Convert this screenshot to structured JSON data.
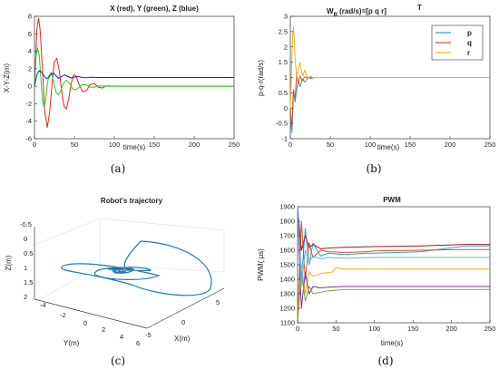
{
  "chart_data": [
    {
      "panel": "(a)",
      "type": "line",
      "title": "X (red), Y (green), Z (blue)",
      "xlabel": "time(s)",
      "ylabel": "X-Y-Z(m)",
      "xlim": [
        0,
        250
      ],
      "ylim": [
        -6,
        8
      ],
      "xticks": [
        0,
        50,
        100,
        150,
        200,
        250
      ],
      "yticks": [
        -6,
        -4,
        -2,
        0,
        2,
        4,
        6,
        8
      ],
      "series": [
        {
          "color": "#e8231c",
          "x": [
            0,
            1,
            3,
            5,
            7,
            10,
            13,
            16,
            19,
            22,
            25,
            28,
            31,
            34,
            37,
            40,
            43,
            46,
            49,
            52,
            55,
            60,
            65,
            70,
            75,
            80,
            85,
            90,
            100,
            110,
            250
          ],
          "y": [
            0,
            2.0,
            6.5,
            7.8,
            6.5,
            2.0,
            -3.0,
            -4.7,
            -3.0,
            0.3,
            2.8,
            3.2,
            1.8,
            -0.5,
            -2.3,
            -2.6,
            -1.4,
            0.3,
            1.3,
            1.2,
            0.4,
            -0.6,
            -0.5,
            0.2,
            0.3,
            -0.1,
            -0.2,
            0.05,
            0.02,
            0,
            0
          ]
        },
        {
          "color": "#1fd11f",
          "x": [
            0,
            1,
            2,
            4,
            6,
            8,
            10,
            12,
            14,
            16,
            18,
            21,
            24,
            27,
            30,
            33,
            36,
            40,
            44,
            48,
            52,
            56,
            60,
            65,
            70,
            75,
            80,
            90,
            100,
            110,
            250
          ],
          "y": [
            0,
            1.5,
            3.5,
            4.4,
            3.5,
            1.0,
            -1.6,
            -2.4,
            -1.6,
            0.2,
            1.2,
            1.6,
            0.6,
            -0.7,
            -1.0,
            -0.5,
            0.3,
            0.7,
            0.3,
            -0.3,
            -0.4,
            -0.1,
            0.2,
            0.15,
            -0.1,
            -0.1,
            0.05,
            0,
            0,
            0,
            0
          ]
        },
        {
          "color": "#1e1ee8",
          "x": [
            0,
            3,
            6,
            9,
            12,
            15,
            18,
            21,
            24,
            27,
            30,
            34,
            38,
            42,
            46,
            50,
            55,
            60,
            65,
            70,
            80,
            90,
            100,
            250
          ],
          "y": [
            0,
            1.3,
            1.8,
            1.6,
            1.2,
            0.9,
            1.0,
            1.4,
            1.5,
            1.2,
            0.9,
            1.1,
            1.3,
            1.1,
            0.95,
            1.05,
            1.1,
            1.0,
            0.98,
            1.02,
            1.0,
            1.0,
            1.0,
            1.0
          ]
        }
      ]
    },
    {
      "panel": "(b)",
      "type": "line",
      "title": "W",
      "title_sub": "B",
      "title_rest": " (rad/s)=[p q r]",
      "title_sup": "T",
      "xlabel": "time(s)",
      "ylabel": "p-q-r(rad/s)",
      "xlim": [
        0,
        250
      ],
      "ylim": [
        -1,
        3
      ],
      "xticks": [
        0,
        50,
        100,
        150,
        200,
        250
      ],
      "yticks": [
        -1,
        -0.5,
        0,
        0.5,
        1,
        1.5,
        2,
        2.5,
        3
      ],
      "legend": "top-right",
      "series": [
        {
          "name": "p",
          "color": "#2a9fd6",
          "x": [
            0,
            1,
            2,
            3,
            4,
            6,
            8,
            10,
            12,
            15,
            18,
            22,
            26,
            30,
            35,
            250
          ],
          "y": [
            0,
            -0.6,
            -0.8,
            -0.2,
            0.5,
            0.2,
            0.6,
            0.9,
            0.7,
            0.95,
            0.85,
            1.0,
            0.97,
            1.0,
            1.0,
            1.0
          ]
        },
        {
          "name": "q",
          "color": "#d9531e",
          "x": [
            0,
            1,
            2,
            3,
            4,
            6,
            8,
            10,
            12,
            15,
            18,
            22,
            26,
            30,
            35,
            250
          ],
          "y": [
            0,
            -0.4,
            -0.6,
            0.1,
            0.6,
            0.3,
            1.1,
            0.8,
            1.05,
            0.9,
            1.02,
            0.98,
            1.0,
            1.0,
            1.0,
            1.0
          ]
        },
        {
          "name": "r",
          "color": "#edb120",
          "x": [
            0,
            1,
            2,
            3,
            4,
            5,
            6,
            8,
            10,
            12,
            14,
            16,
            18,
            20,
            22,
            25,
            28,
            32,
            36,
            250
          ],
          "y": [
            0,
            0.8,
            1.8,
            2.4,
            2.65,
            2.2,
            1.6,
            1.0,
            1.3,
            1.5,
            1.2,
            1.05,
            1.25,
            1.1,
            0.95,
            1.05,
            1.0,
            1.0,
            1.0,
            1.0
          ]
        }
      ]
    },
    {
      "panel": "(c)",
      "type": "line",
      "title": "Robot's trajectory",
      "xlabel": "X(m)",
      "ylabel": "Y(m)",
      "zlabel": "Z(m)",
      "xticks": [
        -5,
        0,
        5
      ],
      "yticks": [
        -4,
        -2,
        0,
        2,
        4,
        6
      ],
      "zticks": [
        -0.5,
        0,
        0.5,
        1,
        1.5,
        2
      ]
    },
    {
      "panel": "(d)",
      "type": "line",
      "title": "PWM",
      "xlabel": "time(s)",
      "ylabel": "PWM(  μs)",
      "xlim": [
        0,
        250
      ],
      "ylim": [
        1100,
        1900
      ],
      "xticks": [
        0,
        50,
        100,
        150,
        200,
        250
      ],
      "yticks": [
        1100,
        1200,
        1300,
        1400,
        1500,
        1600,
        1700,
        1800,
        1900
      ],
      "series": [
        {
          "color": "#2a9fd6",
          "x": [
            0,
            5,
            10,
            15,
            20,
            30,
            40,
            60,
            90,
            100,
            160,
            220,
            250
          ],
          "y": [
            1900,
            1400,
            1750,
            1500,
            1650,
            1560,
            1580,
            1570,
            1580,
            1580,
            1590,
            1630,
            1630
          ]
        },
        {
          "color": "#d9531e",
          "x": [
            0,
            5,
            10,
            15,
            20,
            30,
            40,
            60,
            90,
            100,
            160,
            220,
            250
          ],
          "y": [
            1100,
            1800,
            1400,
            1650,
            1550,
            1600,
            1590,
            1585,
            1590,
            1595,
            1600,
            1605,
            1605
          ]
        },
        {
          "color": "#edb120",
          "x": [
            0,
            5,
            10,
            15,
            20,
            30,
            45,
            50,
            60,
            100,
            250
          ],
          "y": [
            1100,
            1500,
            1300,
            1450,
            1420,
            1440,
            1450,
            1480,
            1470,
            1470,
            1470
          ]
        },
        {
          "color": "#7e2f8e",
          "x": [
            0,
            5,
            10,
            15,
            20,
            30,
            40,
            60,
            100,
            250
          ],
          "y": [
            1900,
            1200,
            1450,
            1300,
            1350,
            1340,
            1345,
            1350,
            1350,
            1350
          ]
        },
        {
          "color": "#77ac30",
          "x": [
            0,
            5,
            10,
            15,
            20,
            30,
            40,
            60,
            100,
            250
          ],
          "y": [
            1100,
            1450,
            1250,
            1350,
            1300,
            1310,
            1320,
            1330,
            1330,
            1330
          ]
        },
        {
          "color": "#a2142f",
          "x": [
            0,
            5,
            10,
            15,
            20,
            30,
            40,
            60,
            100,
            160,
            220,
            250
          ],
          "y": [
            1900,
            1600,
            1700,
            1620,
            1640,
            1610,
            1615,
            1620,
            1625,
            1630,
            1640,
            1640
          ]
        },
        {
          "color": "#4dbeee",
          "x": [
            0,
            5,
            10,
            15,
            20,
            30,
            40,
            60,
            100,
            250
          ],
          "y": [
            1900,
            1350,
            1600,
            1520,
            1560,
            1540,
            1550,
            1545,
            1550,
            1550
          ]
        }
      ]
    }
  ],
  "captions": [
    "(a)",
    "(b)",
    "(c)",
    "(d)"
  ]
}
